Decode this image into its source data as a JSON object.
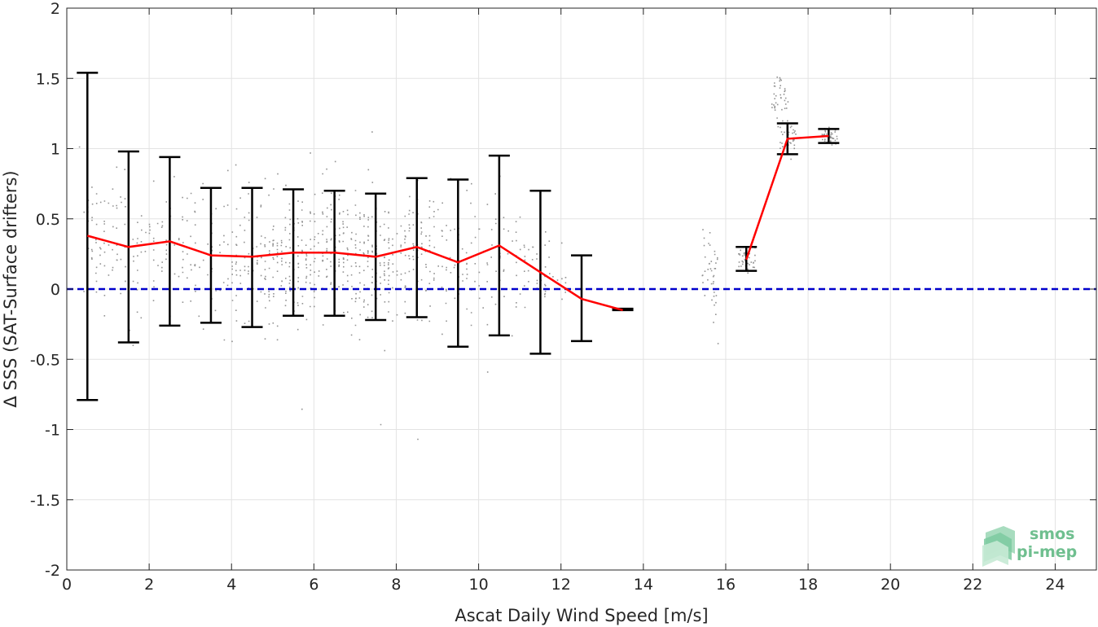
{
  "chart_data": {
    "type": "scatter",
    "xlabel": "Ascat Daily Wind Speed [m/s]",
    "ylabel": "Δ SSS (SAT-Surface drifters)",
    "xlim": [
      0,
      25
    ],
    "ylim": [
      -2,
      2
    ],
    "xticks": [
      0,
      2,
      4,
      6,
      8,
      10,
      12,
      14,
      16,
      18,
      20,
      22,
      24
    ],
    "yticks": [
      -2,
      -1.5,
      -1,
      -0.5,
      0,
      0.5,
      1,
      1.5,
      2
    ],
    "grid": true,
    "reference_line": {
      "y": 0,
      "style": "dashed",
      "color": "#0000cc"
    },
    "mean_line_color": "#ff0000",
    "errorbar_color": "#000000",
    "scatter_color": "#808080",
    "scatter_note": "dense cloud of grey points, mostly between 0 and 13 m/s",
    "mean_segments": [
      {
        "x": [
          0.5,
          1.5,
          2.5,
          3.5,
          4.5,
          5.5,
          6.5,
          7.5,
          8.5,
          9.5,
          10.5,
          11.5,
          12.5,
          13.5
        ],
        "y": [
          0.38,
          0.3,
          0.34,
          0.24,
          0.23,
          0.26,
          0.26,
          0.23,
          0.3,
          0.19,
          0.31,
          0.12,
          -0.07,
          -0.15
        ]
      },
      {
        "x": [
          16.5,
          17.5,
          18.5
        ],
        "y": [
          0.21,
          1.07,
          1.09
        ]
      }
    ],
    "errorbars": [
      {
        "x": 0.5,
        "low": -0.79,
        "high": 1.54
      },
      {
        "x": 1.5,
        "low": -0.38,
        "high": 0.98
      },
      {
        "x": 2.5,
        "low": -0.26,
        "high": 0.94
      },
      {
        "x": 3.5,
        "low": -0.24,
        "high": 0.72
      },
      {
        "x": 4.5,
        "low": -0.27,
        "high": 0.72
      },
      {
        "x": 5.5,
        "low": -0.19,
        "high": 0.71
      },
      {
        "x": 6.5,
        "low": -0.19,
        "high": 0.7
      },
      {
        "x": 7.5,
        "low": -0.22,
        "high": 0.68
      },
      {
        "x": 8.5,
        "low": -0.2,
        "high": 0.79
      },
      {
        "x": 9.5,
        "low": -0.41,
        "high": 0.78
      },
      {
        "x": 10.5,
        "low": -0.33,
        "high": 0.95
      },
      {
        "x": 11.5,
        "low": -0.46,
        "high": 0.7
      },
      {
        "x": 12.5,
        "low": -0.37,
        "high": 0.24
      },
      {
        "x": 13.5,
        "low": -0.15,
        "high": -0.14
      },
      {
        "x": 16.5,
        "low": 0.13,
        "high": 0.3
      },
      {
        "x": 17.5,
        "low": 0.96,
        "high": 1.18
      },
      {
        "x": 18.5,
        "low": 1.04,
        "high": 1.14
      }
    ]
  },
  "logo": {
    "line1": "smos",
    "line2": "pi-mep",
    "color": "#6fbf8f"
  }
}
